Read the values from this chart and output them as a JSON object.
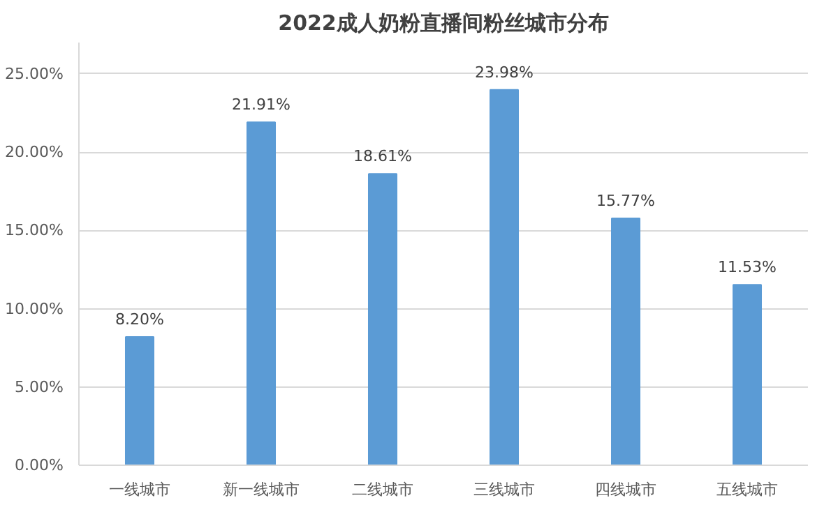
{
  "chart_data": {
    "type": "bar",
    "title": "2022成人奶粉直播间粉丝城市分布",
    "categories": [
      "一线城市",
      "新一线城市",
      "二线城市",
      "三线城市",
      "四线城市",
      "五线城市"
    ],
    "values": [
      8.2,
      21.91,
      18.61,
      23.98,
      15.77,
      11.53
    ],
    "value_labels": [
      "8.20%",
      "21.91%",
      "18.61%",
      "23.98%",
      "15.77%",
      "11.53%"
    ],
    "color": "#5b9bd5",
    "ylim": [
      0,
      27
    ],
    "yticks": [
      {
        "value": 0,
        "label": "0.00%"
      },
      {
        "value": 5,
        "label": "5.00%"
      },
      {
        "value": 10,
        "label": "10.00%"
      },
      {
        "value": 15,
        "label": "15.00%"
      },
      {
        "value": 20,
        "label": "20.00%"
      },
      {
        "value": 25,
        "label": "25.00%"
      }
    ],
    "grid": "y"
  }
}
